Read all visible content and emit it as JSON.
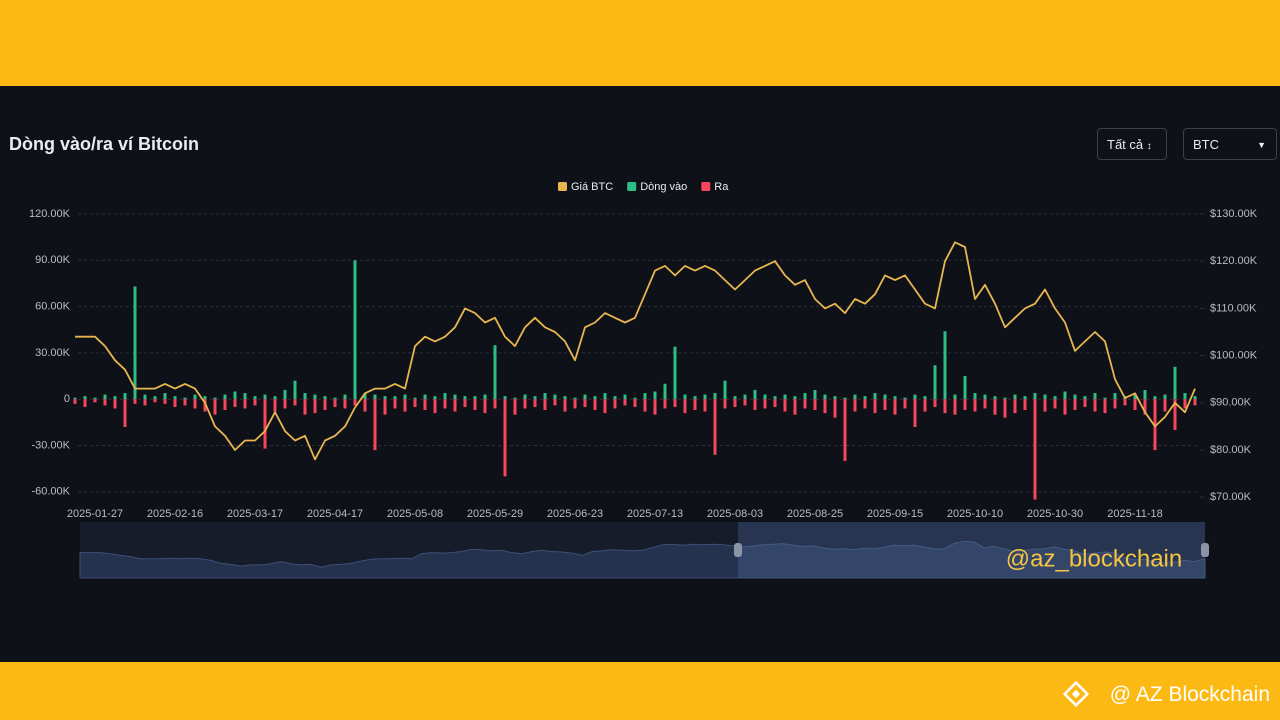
{
  "header": {
    "title": "Dòng vào/ra ví Bitcoin",
    "filter": "Tất cả",
    "asset": "BTC"
  },
  "chart_data": {
    "type": "bar",
    "categories": [
      null,
      null,
      "2025-01-27",
      null,
      null,
      null,
      null,
      null,
      null,
      null,
      "2025-02-16",
      null,
      null,
      null,
      null,
      null,
      null,
      null,
      "2025-03-17",
      null,
      null,
      null,
      null,
      null,
      null,
      null,
      "2025-04-17",
      null,
      null,
      null,
      null,
      null,
      null,
      null,
      "2025-05-08",
      null,
      null,
      null,
      null,
      null,
      null,
      null,
      "2025-05-29",
      null,
      null,
      null,
      null,
      null,
      null,
      null,
      "2025-06-23",
      null,
      null,
      null,
      null,
      null,
      null,
      null,
      "2025-07-13",
      null,
      null,
      null,
      null,
      null,
      null,
      null,
      "2025-08-03",
      null,
      null,
      null,
      null,
      null,
      null,
      null,
      "2025-08-25",
      null,
      null,
      null,
      null,
      null,
      null,
      null,
      "2025-09-15",
      null,
      null,
      null,
      null,
      null,
      null,
      null,
      "2025-10-10",
      null,
      null,
      null,
      null,
      null,
      null,
      null,
      "2025-10-30",
      null,
      null,
      null,
      null,
      null,
      null,
      null,
      "2025-11-18",
      null,
      null,
      null,
      null,
      null,
      null
    ],
    "series": [
      {
        "name": "Giá BTC",
        "type": "line",
        "axis": "y2",
        "color": "#e8b650",
        "values": [
          104000,
          104000,
          104000,
          102000,
          99000,
          97000,
          93000,
          93000,
          93000,
          94000,
          93000,
          94000,
          93000,
          90000,
          85000,
          83000,
          80000,
          82000,
          82000,
          84000,
          88000,
          84000,
          82000,
          83000,
          78000,
          82000,
          83000,
          85000,
          89000,
          92000,
          93000,
          93000,
          94000,
          93000,
          102000,
          104000,
          103000,
          104000,
          106000,
          110000,
          109000,
          107000,
          108000,
          104000,
          102000,
          106000,
          108000,
          106000,
          105000,
          103000,
          99000,
          106000,
          107000,
          109000,
          108000,
          107000,
          108000,
          113000,
          118000,
          119000,
          117000,
          119000,
          118000,
          119000,
          118000,
          116000,
          114000,
          116000,
          118000,
          119000,
          120000,
          117000,
          115000,
          116000,
          112000,
          110000,
          111000,
          109000,
          112000,
          111000,
          113000,
          117000,
          116000,
          117000,
          114000,
          111000,
          110000,
          120000,
          124000,
          123000,
          112000,
          115000,
          111000,
          106000,
          108000,
          110000,
          111000,
          114000,
          110000,
          107000,
          101000,
          103000,
          105000,
          103000,
          95000,
          91000,
          92000,
          88000,
          85000,
          87000,
          90000,
          88000,
          93000
        ]
      },
      {
        "name": "Dòng vào",
        "color": "#2ebd85",
        "values": [
          1000,
          2000,
          1000,
          3000,
          2000,
          4000,
          73000,
          3000,
          2000,
          4000,
          2000,
          1000,
          3000,
          2000,
          1000,
          3000,
          5000,
          4000,
          2000,
          3000,
          2000,
          6000,
          12000,
          4000,
          3000,
          2000,
          1000,
          3000,
          90000,
          4000,
          3000,
          2000,
          2000,
          3000,
          1000,
          3000,
          2000,
          4000,
          3000,
          2000,
          2000,
          3000,
          35000,
          2000,
          1000,
          3000,
          2000,
          4000,
          3000,
          2000,
          1000,
          3000,
          2000,
          4000,
          2000,
          3000,
          1000,
          4000,
          5000,
          10000,
          34000,
          3000,
          2000,
          3000,
          4000,
          12000,
          2000,
          3000,
          6000,
          3000,
          2000,
          3000,
          2000,
          4000,
          6000,
          3000,
          2000,
          1000,
          3000,
          2000,
          4000,
          3000,
          2000,
          1000,
          3000,
          2000,
          22000,
          44000,
          3000,
          15000,
          4000,
          3000,
          2000,
          1000,
          3000,
          2000,
          4000,
          3000,
          2000,
          5000,
          3000,
          2000,
          4000,
          1000,
          4000,
          2000,
          3000,
          6000,
          2000,
          3000,
          21000,
          4000,
          2000
        ]
      },
      {
        "name": "Ra",
        "color": "#f6465d",
        "values": [
          -3000,
          -5000,
          -2000,
          -4000,
          -6000,
          -18000,
          -3000,
          -4000,
          -2000,
          -3000,
          -5000,
          -4000,
          -6000,
          -8000,
          -10000,
          -7000,
          -5000,
          -6000,
          -4000,
          -32000,
          -8000,
          -6000,
          -4000,
          -10000,
          -9000,
          -7000,
          -5000,
          -6000,
          -4000,
          -8000,
          -33000,
          -10000,
          -6000,
          -8000,
          -5000,
          -7000,
          -9000,
          -6000,
          -8000,
          -5000,
          -7000,
          -9000,
          -6000,
          -50000,
          -10000,
          -6000,
          -5000,
          -7000,
          -4000,
          -8000,
          -6000,
          -5000,
          -7000,
          -9000,
          -6000,
          -4000,
          -5000,
          -8000,
          -10000,
          -6000,
          -5000,
          -9000,
          -7000,
          -8000,
          -36000,
          -6000,
          -5000,
          -4000,
          -7000,
          -6000,
          -5000,
          -8000,
          -10000,
          -6000,
          -7000,
          -9000,
          -12000,
          -40000,
          -8000,
          -6000,
          -9000,
          -7000,
          -10000,
          -6000,
          -18000,
          -8000,
          -5000,
          -9000,
          -10000,
          -7000,
          -8000,
          -6000,
          -10000,
          -12000,
          -9000,
          -7000,
          -65000,
          -8000,
          -6000,
          -10000,
          -7000,
          -5000,
          -8000,
          -9000,
          -6000,
          -4000,
          -7000,
          -10000,
          -33000,
          -8000,
          -20000,
          -6000,
          -4000
        ]
      }
    ],
    "ylim": [
      -65300,
      120000
    ],
    "yticks": [
      {
        "value": -60000,
        "label": "-60.00K"
      },
      {
        "value": -30000,
        "label": "-30.00K"
      },
      0,
      {
        "value": 30000,
        "label": "30.00K"
      },
      {
        "value": 60000,
        "label": "60.00K"
      },
      {
        "value": 90000,
        "label": "90.00K"
      },
      {
        "value": 120000,
        "label": "120.00K"
      }
    ],
    "y2lim": [
      69400,
      130000
    ],
    "y2ticks": [
      {
        "value": 70000,
        "label": "$70.00K"
      },
      {
        "value": 80000,
        "label": "$80.00K"
      },
      {
        "value": 90000,
        "label": "$90.00K"
      },
      {
        "value": 100000,
        "label": "$100.00K"
      },
      {
        "value": 110000,
        "label": "$110.00K"
      },
      {
        "value": 120000,
        "label": "$120.00K"
      },
      {
        "value": 130000,
        "label": "$130.00K"
      }
    ],
    "grid": true,
    "legend": "top"
  },
  "watermark": "@az_blockchain",
  "footer": "@ AZ Blockchain"
}
